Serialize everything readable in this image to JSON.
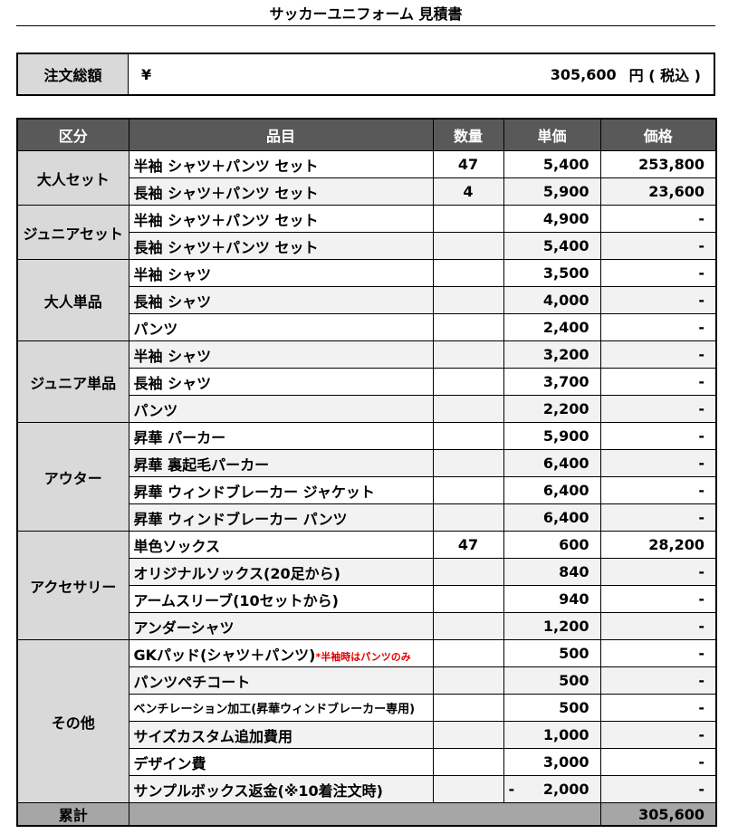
{
  "title": "サッカーユニフォーム 見積書",
  "summary": {
    "label": "注文総額",
    "currency": "¥",
    "amount": "305,600",
    "unit": "円 ( 税込 )"
  },
  "headers": [
    "区分",
    "品目",
    "数量",
    "単価",
    "価格"
  ],
  "groups": [
    {
      "category": "大人セット",
      "items": [
        {
          "name": "半袖 シャツ＋パンツ セット",
          "qty": "47",
          "price": "5,400",
          "total": "253,800"
        },
        {
          "name": "長袖 シャツ＋パンツ セット",
          "qty": "4",
          "price": "5,900",
          "total": "23,600"
        }
      ]
    },
    {
      "category": "ジュニアセット",
      "items": [
        {
          "name": "半袖 シャツ＋パンツ セット",
          "qty": "",
          "price": "4,900",
          "total": "-"
        },
        {
          "name": "長袖 シャツ＋パンツ セット",
          "qty": "",
          "price": "5,400",
          "total": "-"
        }
      ]
    },
    {
      "category": "大人単品",
      "items": [
        {
          "name": "半袖 シャツ",
          "qty": "",
          "price": "3,500",
          "total": "-"
        },
        {
          "name": "長袖 シャツ",
          "qty": "",
          "price": "4,000",
          "total": "-"
        },
        {
          "name": "パンツ",
          "qty": "",
          "price": "2,400",
          "total": "-"
        }
      ]
    },
    {
      "category": "ジュニア単品",
      "items": [
        {
          "name": "半袖 シャツ",
          "qty": "",
          "price": "3,200",
          "total": "-"
        },
        {
          "name": "長袖 シャツ",
          "qty": "",
          "price": "3,700",
          "total": "-"
        },
        {
          "name": "パンツ",
          "qty": "",
          "price": "2,200",
          "total": "-"
        }
      ]
    },
    {
      "category": "アウター",
      "items": [
        {
          "name": "昇華 パーカー",
          "qty": "",
          "price": "5,900",
          "total": "-"
        },
        {
          "name": "昇華 裏起毛パーカー",
          "qty": "",
          "price": "6,400",
          "total": "-"
        },
        {
          "name": "昇華 ウィンドブレーカー ジャケット",
          "qty": "",
          "price": "6,400",
          "total": "-"
        },
        {
          "name": "昇華 ウィンドブレーカー パンツ",
          "qty": "",
          "price": "6,400",
          "total": "-"
        }
      ]
    },
    {
      "category": "アクセサリー",
      "items": [
        {
          "name": "単色ソックス",
          "qty": "47",
          "price": "600",
          "total": "28,200"
        },
        {
          "name": "オリジナルソックス(20足から)",
          "qty": "",
          "price": "840",
          "total": "-"
        },
        {
          "name": "アームスリーブ(10セットから)",
          "qty": "",
          "price": "940",
          "total": "-"
        },
        {
          "name": "アンダーシャツ",
          "qty": "",
          "price": "1,200",
          "total": "-"
        }
      ]
    },
    {
      "category": "その他",
      "items": [
        {
          "name": "GKパッド(シャツ＋パンツ)",
          "note": "*半袖時はパンツのみ",
          "qty": "",
          "price": "500",
          "total": "-"
        },
        {
          "name": "パンツペチコート",
          "qty": "",
          "price": "500",
          "total": "-"
        },
        {
          "name": "ベンチレーション加工(昇華ウィンドブレーカー専用)",
          "small": true,
          "qty": "",
          "price": "500",
          "total": "-"
        },
        {
          "name": "サイズカスタム追加費用",
          "qty": "",
          "price": "1,000",
          "total": "-"
        },
        {
          "name": "デザイン費",
          "qty": "",
          "price": "3,000",
          "total": "-"
        },
        {
          "name": "サンプルボックス返金(※10着注文時)",
          "qty": "",
          "price_sign": "-",
          "price": "2,000",
          "total": "-"
        }
      ]
    }
  ],
  "total_row": {
    "label": "累計",
    "total": "305,600"
  },
  "colors": {
    "header_bg": "#595959",
    "category_bg": "#d9d9d9",
    "alt_row_bg": "#f2f2f2",
    "total_bg": "#a6a6a6",
    "note": "#e00000"
  }
}
